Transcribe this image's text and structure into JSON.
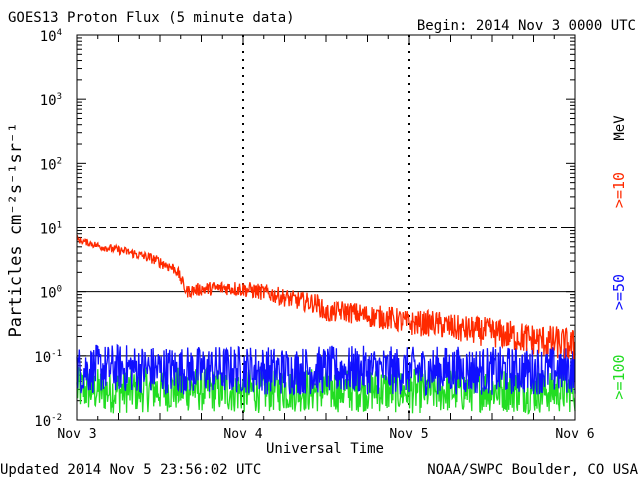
{
  "title": "GOES13 Proton Flux (5 minute data)",
  "begin_label": "Begin: 2014 Nov 3 0000 UTC",
  "footer_updated": "Updated 2014 Nov  5 23:56:02 UTC",
  "footer_credit": "NOAA/SWPC Boulder, CO USA",
  "chart_data": {
    "type": "line",
    "title": "GOES13 Proton Flux (5 minute data)",
    "xlabel": "Universal Time",
    "ylabel": "Particles cm⁻²s⁻¹sr⁻¹",
    "units": "MeV",
    "yscale": "log",
    "ylim": [
      0.01,
      10000
    ],
    "xlim": [
      0,
      3
    ],
    "x_ticks": [
      {
        "value": 0,
        "label": "Nov 3"
      },
      {
        "value": 1,
        "label": "Nov 4"
      },
      {
        "value": 2,
        "label": "Nov 5"
      },
      {
        "value": 3,
        "label": "Nov 6"
      }
    ],
    "y_ticks": [
      {
        "value": 0.01,
        "base": "10",
        "exp": "-2"
      },
      {
        "value": 0.1,
        "base": "10",
        "exp": "-1"
      },
      {
        "value": 1,
        "base": "10",
        "exp": "0"
      },
      {
        "value": 10,
        "base": "10",
        "exp": "1"
      },
      {
        "value": 100,
        "base": "10",
        "exp": "2"
      },
      {
        "value": 1000,
        "base": "10",
        "exp": "3"
      },
      {
        "value": 10000,
        "base": "10",
        "exp": "4"
      }
    ],
    "series": [
      {
        "name": ">=10",
        "color": "#ff2a00",
        "x": [
          0,
          0.15,
          0.3,
          0.45,
          0.6,
          0.66,
          0.75,
          0.9,
          1.0,
          1.15,
          1.3,
          1.45,
          1.5,
          1.6,
          1.75,
          1.9,
          2.0,
          2.15,
          2.3,
          2.45,
          2.6,
          2.75,
          2.9,
          3.0
        ],
        "y": [
          6.5,
          5.0,
          4.2,
          3.3,
          2.2,
          1.0,
          1.1,
          1.15,
          1.1,
          0.95,
          0.75,
          0.65,
          0.45,
          0.5,
          0.42,
          0.38,
          0.32,
          0.32,
          0.26,
          0.24,
          0.21,
          0.18,
          0.16,
          0.14
        ]
      },
      {
        "name": ">=50",
        "color": "#1010ff",
        "x": [
          0,
          0.25,
          0.5,
          0.75,
          1.0,
          1.25,
          1.5,
          1.75,
          2.0,
          2.25,
          2.5,
          2.75,
          3.0
        ],
        "y": [
          0.06,
          0.065,
          0.06,
          0.06,
          0.062,
          0.058,
          0.06,
          0.06,
          0.058,
          0.06,
          0.058,
          0.06,
          0.06
        ]
      },
      {
        "name": ">=100",
        "color": "#22dd22",
        "x": [
          0,
          0.25,
          0.5,
          0.75,
          1.0,
          1.25,
          1.5,
          1.75,
          2.0,
          2.25,
          2.5,
          2.75,
          3.0
        ],
        "y": [
          0.03,
          0.028,
          0.03,
          0.03,
          0.028,
          0.03,
          0.029,
          0.03,
          0.028,
          0.029,
          0.03,
          0.028,
          0.029
        ]
      }
    ],
    "reference_lines": [
      {
        "value": 10,
        "style": "dashed"
      },
      {
        "value": 1,
        "style": "solid"
      },
      {
        "value": 0.1,
        "style": "solid"
      }
    ],
    "legend": {
      "placement": "right",
      "rotated": true
    }
  }
}
